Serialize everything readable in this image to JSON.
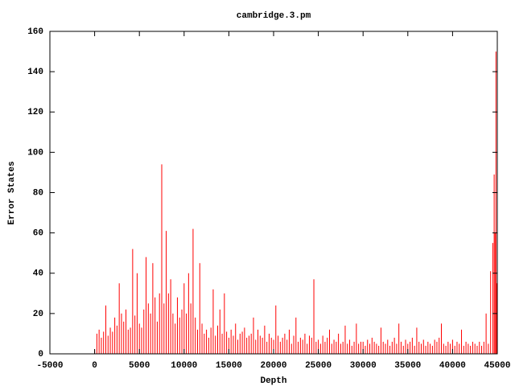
{
  "chart_data": {
    "type": "bar",
    "title": "cambridge.3.pm",
    "x_label": "Depth",
    "y_label": "Error States",
    "color": "#ff0000",
    "x": [
      0,
      250,
      500,
      750,
      1000,
      1250,
      1500,
      1750,
      2000,
      2250,
      2500,
      2750,
      3000,
      3250,
      3500,
      3750,
      4000,
      4250,
      4500,
      4750,
      5000,
      5250,
      5500,
      5750,
      6000,
      6250,
      6500,
      6750,
      7000,
      7250,
      7500,
      7750,
      8000,
      8250,
      8500,
      8750,
      9000,
      9250,
      9500,
      9750,
      10000,
      10250,
      10500,
      10750,
      11000,
      11250,
      11500,
      11750,
      12000,
      12250,
      12500,
      12750,
      13000,
      13250,
      13500,
      13750,
      14000,
      14250,
      14500,
      14750,
      15000,
      15250,
      15500,
      15750,
      16000,
      16250,
      16500,
      16750,
      17000,
      17250,
      17500,
      17750,
      18000,
      18250,
      18500,
      18750,
      19000,
      19250,
      19500,
      19750,
      20000,
      20250,
      20500,
      20750,
      21000,
      21250,
      21500,
      21750,
      22000,
      22250,
      22500,
      22750,
      23000,
      23250,
      23500,
      23750,
      24000,
      24250,
      24500,
      24750,
      25000,
      25250,
      25500,
      25750,
      26000,
      26250,
      26500,
      26750,
      27000,
      27250,
      27500,
      27750,
      28000,
      28250,
      28500,
      28750,
      29000,
      29250,
      29500,
      29750,
      30000,
      30250,
      30500,
      30750,
      31000,
      31250,
      31500,
      31750,
      32000,
      32250,
      32500,
      32750,
      33000,
      33250,
      33500,
      33750,
      34000,
      34250,
      34500,
      34750,
      35000,
      35250,
      35500,
      35750,
      36000,
      36250,
      36500,
      36750,
      37000,
      37250,
      37500,
      37750,
      38000,
      38250,
      38500,
      38750,
      39000,
      39250,
      39500,
      39750,
      40000,
      40250,
      40500,
      40750,
      41000,
      41250,
      41500,
      41750,
      42000,
      42250,
      42500,
      42750,
      43000,
      43250,
      43500,
      43750,
      44000,
      44250,
      44500,
      44650,
      44750,
      44850,
      44950
    ],
    "values": [
      2,
      10,
      12,
      8,
      11,
      24,
      9,
      13,
      11,
      18,
      14,
      35,
      20,
      16,
      22,
      12,
      13,
      52,
      19,
      40,
      15,
      13,
      22,
      48,
      25,
      20,
      45,
      28,
      16,
      30,
      94,
      25,
      61,
      30,
      37,
      20,
      15,
      28,
      18,
      22,
      35,
      20,
      40,
      25,
      62,
      18,
      12,
      45,
      15,
      10,
      12,
      8,
      13,
      32,
      9,
      14,
      22,
      10,
      30,
      11,
      8,
      12,
      9,
      15,
      7,
      10,
      11,
      13,
      8,
      9,
      10,
      18,
      7,
      12,
      9,
      8,
      14,
      6,
      10,
      8,
      7,
      24,
      9,
      6,
      8,
      10,
      7,
      12,
      5,
      9,
      18,
      6,
      8,
      7,
      10,
      5,
      9,
      8,
      37,
      6,
      7,
      5,
      9,
      6,
      8,
      12,
      5,
      7,
      6,
      10,
      5,
      6,
      14,
      5,
      7,
      4,
      6,
      15,
      5,
      6,
      6,
      4,
      7,
      5,
      8,
      6,
      5,
      4,
      13,
      6,
      5,
      7,
      4,
      6,
      8,
      5,
      15,
      6,
      4,
      7,
      5,
      6,
      8,
      4,
      13,
      6,
      5,
      7,
      4,
      6,
      5,
      4,
      7,
      6,
      8,
      15,
      5,
      4,
      6,
      5,
      7,
      4,
      6,
      5,
      12,
      4,
      6,
      5,
      4,
      6,
      5,
      4,
      6,
      4,
      6,
      20,
      5,
      41,
      55,
      89,
      60,
      150,
      35
    ],
    "xlim": [
      -5000,
      45000
    ],
    "xticks": [
      -5000,
      0,
      5000,
      10000,
      15000,
      20000,
      25000,
      30000,
      35000,
      40000,
      45000
    ],
    "ylim": [
      0,
      160
    ],
    "yticks": [
      0,
      20,
      40,
      60,
      80,
      100,
      120,
      140,
      160
    ]
  }
}
